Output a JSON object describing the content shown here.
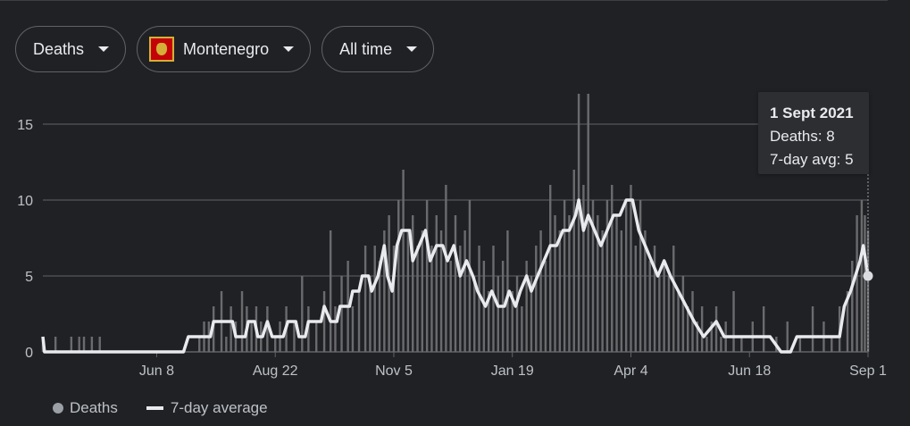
{
  "filters": {
    "metric": "Deaths",
    "country": "Montenegro",
    "period": "All time"
  },
  "tooltip": {
    "date": "1 Sept 2021",
    "deaths_line": "Deaths: 8",
    "avg_line": "7-day avg: 5"
  },
  "legend": {
    "bars": "Deaths",
    "line": "7-day average"
  },
  "colors": {
    "bars": "#6a6b6e",
    "line": "#e8eaed",
    "grid": "#5f6368",
    "background": "#202124"
  },
  "chart_data": {
    "type": "bar",
    "title": "",
    "xlabel": "",
    "ylabel": "",
    "x_range": [
      "2020-03-28",
      "2021-09-01"
    ],
    "ylim": [
      0,
      17.5
    ],
    "yticks": [
      0,
      5,
      10,
      15
    ],
    "xticks": [
      {
        "label": "Jun 8",
        "date": "2020-06-08"
      },
      {
        "label": "Aug 22",
        "date": "2020-08-22"
      },
      {
        "label": "Nov 5",
        "date": "2020-11-05"
      },
      {
        "label": "Jan 19",
        "date": "2021-01-19"
      },
      {
        "label": "Apr 4",
        "date": "2021-04-04"
      },
      {
        "label": "Jun 18",
        "date": "2021-06-18"
      },
      {
        "label": "Sep 1",
        "date": "2021-09-01"
      }
    ],
    "grid": true,
    "legend_position": "bottom-left",
    "series": [
      {
        "name": "Deaths",
        "type": "bar",
        "points": [
          [
            "2020-03-28",
            1
          ],
          [
            "2020-04-05",
            1
          ],
          [
            "2020-04-15",
            1
          ],
          [
            "2020-04-20",
            1
          ],
          [
            "2020-04-23",
            1
          ],
          [
            "2020-04-28",
            1
          ],
          [
            "2020-05-03",
            1
          ],
          [
            "2020-07-05",
            1
          ],
          [
            "2020-07-08",
            2
          ],
          [
            "2020-07-11",
            2
          ],
          [
            "2020-07-14",
            3
          ],
          [
            "2020-07-19",
            4
          ],
          [
            "2020-07-22",
            1
          ],
          [
            "2020-07-25",
            3
          ],
          [
            "2020-07-28",
            2
          ],
          [
            "2020-08-01",
            4
          ],
          [
            "2020-08-04",
            3
          ],
          [
            "2020-08-07",
            2
          ],
          [
            "2020-08-10",
            3
          ],
          [
            "2020-08-13",
            2
          ],
          [
            "2020-08-17",
            3
          ],
          [
            "2020-08-22",
            1
          ],
          [
            "2020-08-25",
            2
          ],
          [
            "2020-08-29",
            3
          ],
          [
            "2020-09-03",
            2
          ],
          [
            "2020-09-08",
            5
          ],
          [
            "2020-09-12",
            3
          ],
          [
            "2020-09-17",
            2
          ],
          [
            "2020-09-22",
            4
          ],
          [
            "2020-09-26",
            8
          ],
          [
            "2020-09-29",
            3
          ],
          [
            "2020-10-03",
            5
          ],
          [
            "2020-10-07",
            6
          ],
          [
            "2020-10-10",
            3
          ],
          [
            "2020-10-14",
            4
          ],
          [
            "2020-10-18",
            7
          ],
          [
            "2020-10-21",
            5
          ],
          [
            "2020-10-24",
            7
          ],
          [
            "2020-10-27",
            6
          ],
          [
            "2020-10-30",
            8
          ],
          [
            "2020-11-02",
            9
          ],
          [
            "2020-11-05",
            7
          ],
          [
            "2020-11-08",
            10
          ],
          [
            "2020-11-11",
            12
          ],
          [
            "2020-11-14",
            8
          ],
          [
            "2020-11-17",
            9
          ],
          [
            "2020-11-20",
            7
          ],
          [
            "2020-11-23",
            8
          ],
          [
            "2020-11-26",
            10
          ],
          [
            "2020-11-29",
            7
          ],
          [
            "2020-12-02",
            9
          ],
          [
            "2020-12-05",
            8
          ],
          [
            "2020-12-08",
            11
          ],
          [
            "2020-12-11",
            6
          ],
          [
            "2020-12-14",
            9
          ],
          [
            "2020-12-17",
            7
          ],
          [
            "2020-12-20",
            8
          ],
          [
            "2020-12-23",
            10
          ],
          [
            "2020-12-26",
            5
          ],
          [
            "2020-12-29",
            7
          ],
          [
            "2021-01-01",
            6
          ],
          [
            "2021-01-04",
            4
          ],
          [
            "2021-01-07",
            7
          ],
          [
            "2021-01-10",
            5
          ],
          [
            "2021-01-13",
            6
          ],
          [
            "2021-01-16",
            8
          ],
          [
            "2021-01-19",
            4
          ],
          [
            "2021-01-22",
            5
          ],
          [
            "2021-01-25",
            3
          ],
          [
            "2021-01-28",
            6
          ],
          [
            "2021-01-31",
            5
          ],
          [
            "2021-02-03",
            7
          ],
          [
            "2021-02-06",
            8
          ],
          [
            "2021-02-09",
            6
          ],
          [
            "2021-02-12",
            11
          ],
          [
            "2021-02-15",
            9
          ],
          [
            "2021-02-18",
            8
          ],
          [
            "2021-02-21",
            10
          ],
          [
            "2021-02-24",
            9
          ],
          [
            "2021-02-27",
            12
          ],
          [
            "2021-03-02",
            17
          ],
          [
            "2021-03-05",
            11
          ],
          [
            "2021-03-08",
            17
          ],
          [
            "2021-03-11",
            10
          ],
          [
            "2021-03-14",
            9
          ],
          [
            "2021-03-17",
            8
          ],
          [
            "2021-03-20",
            10
          ],
          [
            "2021-03-23",
            11
          ],
          [
            "2021-03-26",
            9
          ],
          [
            "2021-03-29",
            8
          ],
          [
            "2021-04-01",
            10
          ],
          [
            "2021-04-04",
            11
          ],
          [
            "2021-04-07",
            7
          ],
          [
            "2021-04-10",
            10
          ],
          [
            "2021-04-13",
            8
          ],
          [
            "2021-04-16",
            6
          ],
          [
            "2021-04-19",
            7
          ],
          [
            "2021-04-22",
            5
          ],
          [
            "2021-04-25",
            6
          ],
          [
            "2021-04-28",
            5
          ],
          [
            "2021-05-01",
            7
          ],
          [
            "2021-05-04",
            4
          ],
          [
            "2021-05-07",
            5
          ],
          [
            "2021-05-10",
            3
          ],
          [
            "2021-05-13",
            4
          ],
          [
            "2021-05-16",
            2
          ],
          [
            "2021-05-19",
            3
          ],
          [
            "2021-05-22",
            1
          ],
          [
            "2021-05-25",
            2
          ],
          [
            "2021-05-28",
            3
          ],
          [
            "2021-05-31",
            1
          ],
          [
            "2021-06-03",
            2
          ],
          [
            "2021-06-08",
            4
          ],
          [
            "2021-06-13",
            1
          ],
          [
            "2021-06-20",
            2
          ],
          [
            "2021-06-27",
            3
          ],
          [
            "2021-07-05",
            1
          ],
          [
            "2021-07-12",
            2
          ],
          [
            "2021-07-20",
            1
          ],
          [
            "2021-07-28",
            3
          ],
          [
            "2021-08-04",
            2
          ],
          [
            "2021-08-09",
            1
          ],
          [
            "2021-08-14",
            3
          ],
          [
            "2021-08-19",
            4
          ],
          [
            "2021-08-22",
            6
          ],
          [
            "2021-08-25",
            9
          ],
          [
            "2021-08-28",
            10
          ],
          [
            "2021-08-30",
            9
          ],
          [
            "2021-09-01",
            8
          ]
        ]
      },
      {
        "name": "7-day average",
        "type": "line",
        "points": [
          [
            "2020-03-28",
            1
          ],
          [
            "2020-03-29",
            0
          ],
          [
            "2020-06-25",
            0
          ],
          [
            "2020-06-28",
            1
          ],
          [
            "2020-07-12",
            1
          ],
          [
            "2020-07-14",
            2
          ],
          [
            "2020-07-26",
            2
          ],
          [
            "2020-07-28",
            1
          ],
          [
            "2020-08-03",
            1
          ],
          [
            "2020-08-05",
            2
          ],
          [
            "2020-08-09",
            2
          ],
          [
            "2020-08-11",
            1
          ],
          [
            "2020-08-14",
            1
          ],
          [
            "2020-08-17",
            2
          ],
          [
            "2020-08-20",
            1
          ],
          [
            "2020-08-27",
            1
          ],
          [
            "2020-08-30",
            2
          ],
          [
            "2020-09-04",
            2
          ],
          [
            "2020-09-06",
            1
          ],
          [
            "2020-09-10",
            1
          ],
          [
            "2020-09-12",
            2
          ],
          [
            "2020-09-20",
            2
          ],
          [
            "2020-09-22",
            3
          ],
          [
            "2020-09-26",
            2
          ],
          [
            "2020-09-30",
            2
          ],
          [
            "2020-10-02",
            3
          ],
          [
            "2020-10-08",
            3
          ],
          [
            "2020-10-10",
            4
          ],
          [
            "2020-10-14",
            4
          ],
          [
            "2020-10-16",
            5
          ],
          [
            "2020-10-20",
            5
          ],
          [
            "2020-10-22",
            4
          ],
          [
            "2020-10-26",
            5
          ],
          [
            "2020-10-30",
            7
          ],
          [
            "2020-11-01",
            5
          ],
          [
            "2020-11-04",
            4
          ],
          [
            "2020-11-07",
            7
          ],
          [
            "2020-11-10",
            8
          ],
          [
            "2020-11-15",
            8
          ],
          [
            "2020-11-17",
            6
          ],
          [
            "2020-11-21",
            7
          ],
          [
            "2020-11-25",
            8
          ],
          [
            "2020-11-28",
            6
          ],
          [
            "2020-12-02",
            7
          ],
          [
            "2020-12-06",
            7
          ],
          [
            "2020-12-09",
            6
          ],
          [
            "2020-12-13",
            7
          ],
          [
            "2020-12-17",
            5
          ],
          [
            "2020-12-21",
            6
          ],
          [
            "2020-12-25",
            5
          ],
          [
            "2020-12-28",
            4
          ],
          [
            "2021-01-02",
            3
          ],
          [
            "2021-01-06",
            4
          ],
          [
            "2021-01-10",
            3
          ],
          [
            "2021-01-14",
            3
          ],
          [
            "2021-01-17",
            4
          ],
          [
            "2021-01-21",
            3
          ],
          [
            "2021-01-24",
            4
          ],
          [
            "2021-01-28",
            5
          ],
          [
            "2021-01-31",
            4
          ],
          [
            "2021-02-04",
            5
          ],
          [
            "2021-02-08",
            6
          ],
          [
            "2021-02-12",
            7
          ],
          [
            "2021-02-16",
            7
          ],
          [
            "2021-02-20",
            8
          ],
          [
            "2021-02-24",
            8
          ],
          [
            "2021-02-28",
            9
          ],
          [
            "2021-03-02",
            10
          ],
          [
            "2021-03-05",
            8
          ],
          [
            "2021-03-08",
            9
          ],
          [
            "2021-03-12",
            8
          ],
          [
            "2021-03-16",
            7
          ],
          [
            "2021-03-20",
            8
          ],
          [
            "2021-03-24",
            9
          ],
          [
            "2021-03-28",
            9
          ],
          [
            "2021-04-01",
            10
          ],
          [
            "2021-04-05",
            10
          ],
          [
            "2021-04-09",
            8
          ],
          [
            "2021-04-13",
            7
          ],
          [
            "2021-04-17",
            6
          ],
          [
            "2021-04-21",
            5
          ],
          [
            "2021-04-25",
            6
          ],
          [
            "2021-04-29",
            5
          ],
          [
            "2021-05-04",
            4
          ],
          [
            "2021-05-09",
            3
          ],
          [
            "2021-05-14",
            2
          ],
          [
            "2021-05-20",
            1
          ],
          [
            "2021-05-28",
            2
          ],
          [
            "2021-06-02",
            1
          ],
          [
            "2021-07-01",
            1
          ],
          [
            "2021-07-08",
            0
          ],
          [
            "2021-07-14",
            0
          ],
          [
            "2021-07-18",
            1
          ],
          [
            "2021-08-14",
            1
          ],
          [
            "2021-08-17",
            3
          ],
          [
            "2021-08-21",
            4
          ],
          [
            "2021-08-24",
            5
          ],
          [
            "2021-08-27",
            6
          ],
          [
            "2021-08-29",
            7
          ],
          [
            "2021-09-01",
            5
          ]
        ]
      }
    ]
  }
}
